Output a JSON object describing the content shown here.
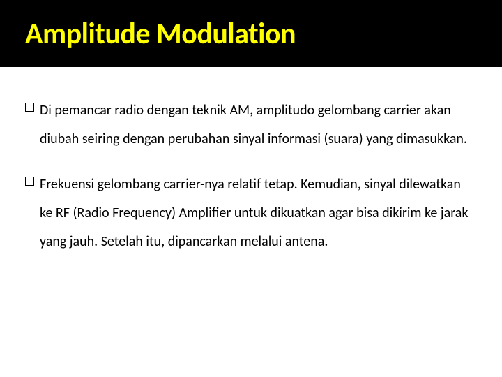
{
  "slide": {
    "title": "Amplitude Modulation",
    "title_color": "#ffff00",
    "title_bg": "#000000",
    "title_fontsize": 42,
    "body_bg": "#ffffff",
    "body_color": "#000000",
    "body_fontsize": 20,
    "bullets": [
      "Di pemancar radio dengan teknik AM, amplitudo gelombang carrier akan diubah seiring dengan perubahan sinyal informasi (suara) yang dimasukkan.",
      "Frekuensi gelombang carrier-nya relatif tetap. Kemudian, sinyal dilewatkan ke RF (Radio Frequency) Amplifier untuk dikuatkan agar bisa dikirim ke jarak yang jauh. Setelah itu, dipancarkan melalui antena."
    ]
  }
}
